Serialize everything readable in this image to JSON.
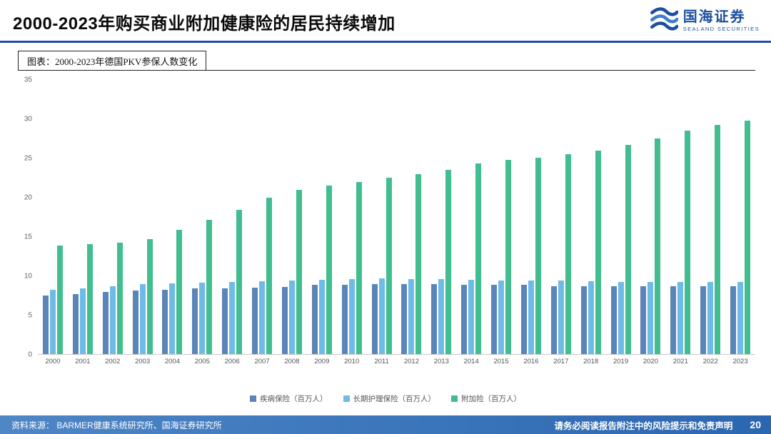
{
  "header": {
    "title": "2000-2023年购买商业附加健康险的居民持续增加",
    "logo": {
      "name": "国海证券",
      "subtitle": "SEALAND SECURITIES"
    }
  },
  "figure": {
    "caption": "图表：2000-2023年德国PKV参保人数变化"
  },
  "chart_data": {
    "type": "bar",
    "title": "2000-2023年德国PKV参保人数变化",
    "categories": [
      "2000",
      "2001",
      "2002",
      "2003",
      "2004",
      "2005",
      "2006",
      "2007",
      "2008",
      "2009",
      "2010",
      "2011",
      "2012",
      "2013",
      "2014",
      "2015",
      "2016",
      "2017",
      "2018",
      "2019",
      "2020",
      "2021",
      "2022",
      "2023"
    ],
    "series": [
      {
        "name": "疾病保险（百万人）",
        "color": "#5b84b8",
        "values": [
          7.5,
          7.7,
          7.9,
          8.1,
          8.2,
          8.4,
          8.4,
          8.5,
          8.6,
          8.8,
          8.8,
          8.9,
          8.9,
          8.9,
          8.8,
          8.8,
          8.8,
          8.7,
          8.7,
          8.7,
          8.7,
          8.7,
          8.7,
          8.7
        ]
      },
      {
        "name": "长期护理保险（百万人）",
        "color": "#6fbbe8",
        "values": [
          8.2,
          8.4,
          8.7,
          8.9,
          9.0,
          9.1,
          9.2,
          9.3,
          9.4,
          9.5,
          9.6,
          9.7,
          9.6,
          9.6,
          9.5,
          9.4,
          9.4,
          9.4,
          9.3,
          9.2,
          9.2,
          9.2,
          9.2,
          9.2
        ]
      },
      {
        "name": "附加险（百万人）",
        "color": "#41bd8f",
        "values": [
          13.9,
          14.0,
          14.2,
          14.7,
          15.9,
          17.1,
          18.4,
          20.0,
          21.0,
          21.5,
          22.0,
          22.5,
          23.0,
          23.5,
          24.3,
          24.8,
          25.1,
          25.5,
          26.0,
          26.7,
          27.5,
          28.5,
          29.3,
          29.8
        ]
      }
    ],
    "xlabel": "",
    "ylabel": "",
    "ylim": [
      0,
      35
    ],
    "yticks": [
      0,
      5,
      10,
      15,
      20,
      25,
      30,
      35
    ],
    "grid": false,
    "legend_position": "bottom"
  },
  "footer": {
    "source": "资料来源：  BARMER健康系统研究所、国海证券研究所",
    "disclaimer": "请务必阅读报告附注中的风险提示和免责声明",
    "page": "20"
  },
  "colors": {
    "accent_blue": "#1d4f9f",
    "footer_gradient_start": "#4e86c6",
    "footer_gradient_end": "#2b66b0"
  }
}
